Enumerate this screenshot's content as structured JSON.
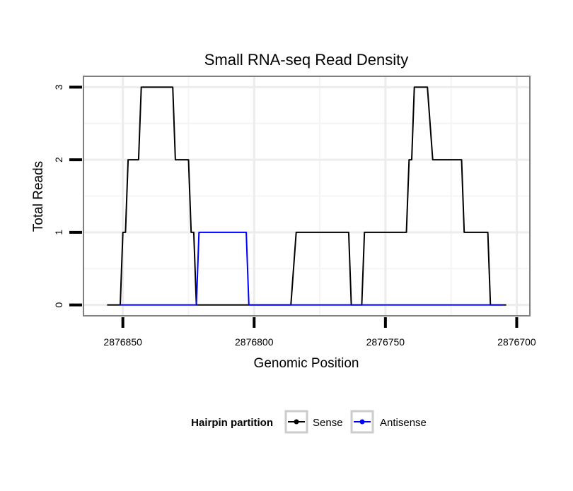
{
  "chart_data": {
    "type": "line",
    "title": "Small RNA-seq Read Density",
    "xlabel": "Genomic Position",
    "ylabel": "Total Reads",
    "x_reversed": true,
    "xlim": [
      2876865,
      2876695
    ],
    "ylim": [
      -0.15,
      3.15
    ],
    "x_ticks": [
      2876850,
      2876800,
      2876750,
      2876700
    ],
    "x_tick_labels": [
      "2876850",
      "2876800",
      "2876750",
      "2876700"
    ],
    "y_ticks": [
      0,
      1,
      2,
      3
    ],
    "y_tick_labels": [
      "0",
      "1",
      "2",
      "3"
    ],
    "grid": true,
    "legend": {
      "title": "Hairpin partition",
      "placement": "bottom"
    },
    "series": [
      {
        "name": "Sense",
        "color": "#000000",
        "x": [
          2876856,
          2876851,
          2876850,
          2876849,
          2876848,
          2876844,
          2876843,
          2876831,
          2876830,
          2876825,
          2876824,
          2876823,
          2876822,
          2876821,
          2876822,
          2876821,
          2876786,
          2876784,
          2876764,
          2876763,
          2876760,
          2876759,
          2876758,
          2876750,
          2876742,
          2876741,
          2876740,
          2876739,
          2876734,
          2876732,
          2876721,
          2876720,
          2876711,
          2876710,
          2876706,
          2876705,
          2876704
        ],
        "y": [
          0,
          0,
          1,
          1,
          2,
          2,
          3,
          3,
          2,
          2,
          1,
          1,
          0,
          0,
          0,
          0,
          0,
          1,
          1,
          0,
          0,
          0,
          1,
          1,
          1,
          2,
          2,
          3,
          3,
          2,
          2,
          1,
          1,
          0,
          0,
          0,
          0
        ]
      },
      {
        "name": "Antisense",
        "color": "#0000ff",
        "x": [
          2876851,
          2876822,
          2876821,
          2876803,
          2876802,
          2876785,
          2876786,
          2876760,
          2876759,
          2876705
        ],
        "y": [
          0,
          0,
          1,
          1,
          0,
          0,
          0,
          0,
          0,
          0
        ]
      }
    ]
  }
}
